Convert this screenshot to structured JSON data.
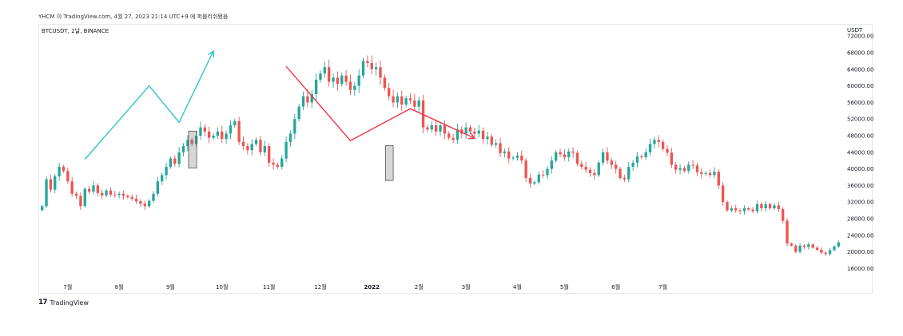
{
  "caption": "YHCM 이 TradingView.com, 4월 27, 2023 21:14 UTC+9 에 퍼블리쉬됐음",
  "legend": "BTCUSDT, 2날, BINANCE",
  "currency": "USDT",
  "footer": {
    "logo_mark": "17",
    "logo_text": "TradingView"
  },
  "colors": {
    "up": "#26a69a",
    "down": "#ef5350",
    "arrow_up": "#2ec4cf",
    "arrow_down": "#f23645",
    "box": "#9e9e9e"
  },
  "chart_data": {
    "type": "candlestick",
    "symbol": "BTCUSDT",
    "interval": "2날",
    "exchange": "BINANCE",
    "y_axis": {
      "ylim": [
        13000,
        73000
      ],
      "ticks": [
        72000,
        68000,
        64000,
        60000,
        56000,
        52000,
        48000,
        44000,
        40000,
        36000,
        32000,
        28000,
        24000,
        20000,
        16000
      ],
      "labels": [
        "72000.00",
        "68000.00",
        "64000.00",
        "60000.00",
        "56000.00",
        "52000.00",
        "48000.00",
        "44000.00",
        "40000.00",
        "36000.00",
        "32000.00",
        "28000.00",
        "24000.00",
        "20000.00",
        "16000.00"
      ]
    },
    "x_axis": {
      "labels": [
        "7월",
        "8월",
        "9월",
        "10월",
        "11월",
        "12월",
        "2022",
        "2월",
        "3월",
        "4월",
        "5월",
        "6월",
        "7월"
      ],
      "positions": [
        6,
        18,
        30,
        42,
        53,
        65,
        77,
        88,
        99,
        111,
        122,
        134,
        145
      ]
    },
    "candles_close": [
      31000,
      37500,
      35000,
      38200,
      40500,
      39500,
      37000,
      34000,
      33500,
      31000,
      35200,
      34500,
      36000,
      34200,
      33600,
      34800,
      33800,
      33700,
      34000,
      33500,
      33200,
      32800,
      32200,
      31600,
      31000,
      32300,
      34000,
      37000,
      38500,
      40500,
      42500,
      41200,
      44000,
      45500,
      47000,
      46000,
      48000,
      50000,
      49000,
      47500,
      48000,
      49000,
      47200,
      48500,
      50500,
      51500,
      46500,
      45500,
      44500,
      46000,
      47000,
      44000,
      45500,
      41500,
      41000,
      40500,
      42500,
      46500,
      48500,
      52000,
      55000,
      57500,
      56000,
      58000,
      61500,
      63000,
      64500,
      61000,
      62000,
      60500,
      62500,
      61000,
      59000,
      60000,
      62500,
      66000,
      65500,
      64000,
      64500,
      62000,
      59500,
      57500,
      56000,
      57500,
      55500,
      57000,
      56500,
      55000,
      56500,
      50000,
      49500,
      50500,
      49000,
      50500,
      48500,
      47500,
      47000,
      49500,
      48500,
      50000,
      49000,
      48500,
      49200,
      47200,
      47800,
      45800,
      46200,
      43800,
      44200,
      42500,
      42700,
      43200,
      42000,
      37800,
      36500,
      36800,
      38600,
      38500,
      40000,
      42000,
      44000,
      43500,
      42800,
      44200,
      43900,
      41200,
      40500,
      39800,
      39000,
      38500,
      41500,
      44000,
      42000,
      41000,
      40000,
      37800,
      37500,
      40500,
      41500,
      43000,
      42800,
      44000,
      46000,
      47000,
      46500,
      44800,
      43900,
      41000,
      39800,
      40200,
      39500,
      41000,
      40800,
      39200,
      38800,
      39000,
      38500,
      39300,
      36000,
      32000,
      30000,
      30500,
      30000,
      29800,
      30500,
      30200,
      29800,
      31500,
      30500,
      31500,
      30500,
      31200,
      30300,
      27500,
      22000,
      21500,
      20000,
      21500,
      21200,
      21800,
      21000,
      20500,
      19800,
      19500,
      20400,
      21300,
      22300
    ],
    "annotations": [
      {
        "type": "arrow",
        "color": "arrow_up",
        "points": [
          [
            10,
            42300
          ],
          [
            25,
            60000
          ],
          [
            32,
            51200
          ],
          [
            40,
            68400
          ]
        ]
      },
      {
        "type": "arrow",
        "color": "arrow_down",
        "points": [
          [
            57,
            64700
          ],
          [
            72,
            46800
          ],
          [
            86,
            54500
          ],
          [
            101,
            47400
          ]
        ]
      },
      {
        "type": "box",
        "x": [
          34.7,
          35.6
        ],
        "y": [
          40200,
          49100
        ]
      },
      {
        "type": "box",
        "x": [
          80.7,
          81.5
        ],
        "y": [
          37200,
          45600
        ]
      }
    ]
  }
}
